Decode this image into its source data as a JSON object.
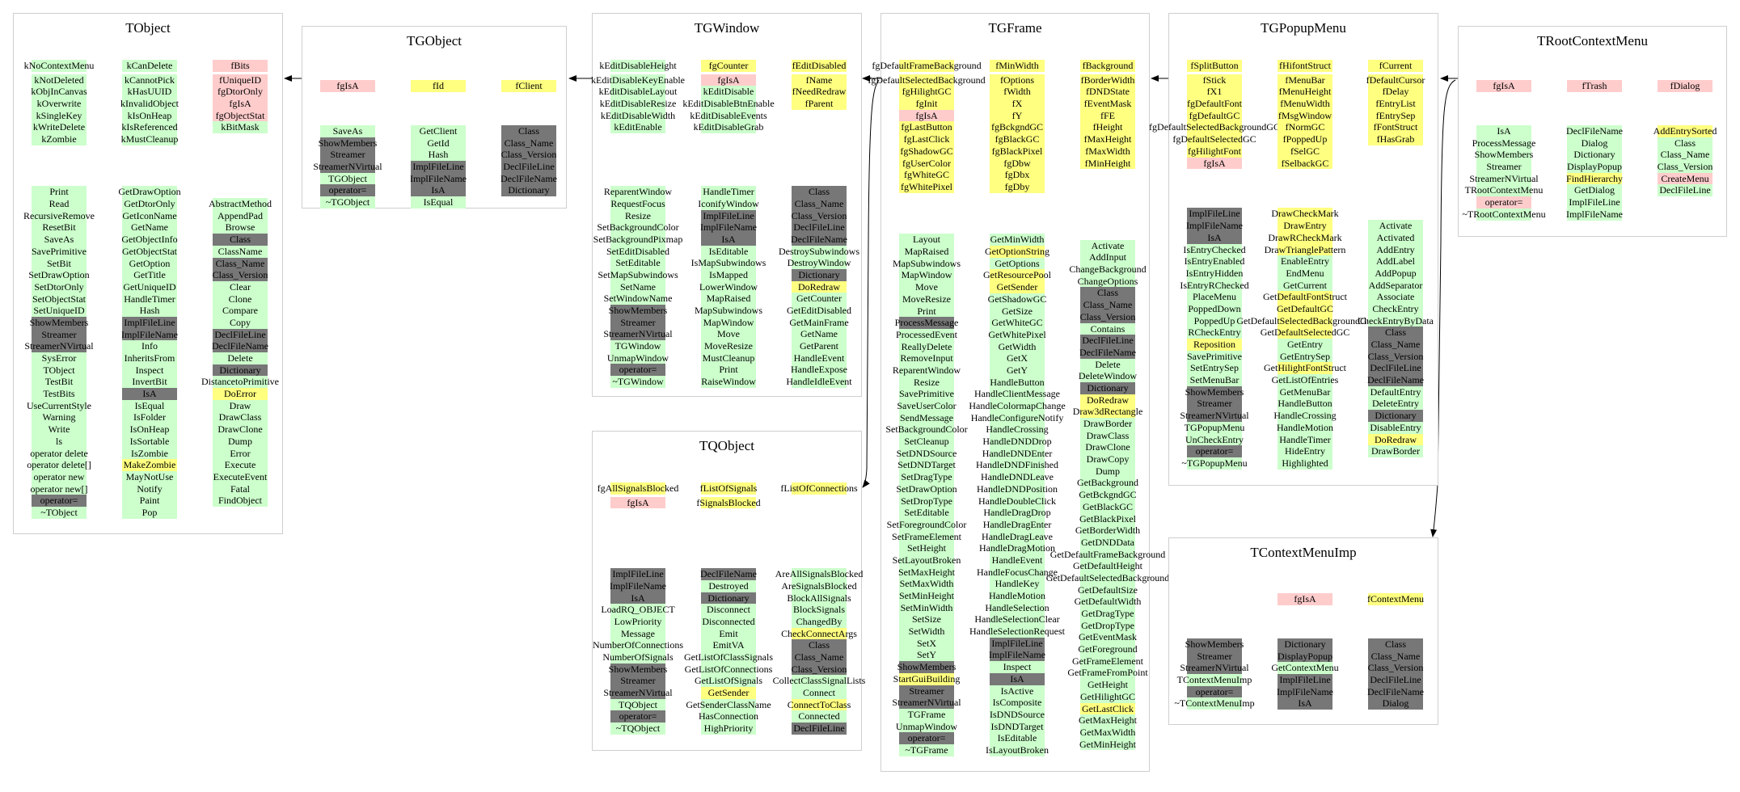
{
  "colors": {
    "g": "#ccffcc",
    "r": "#ffcccc",
    "y": "#ffff80",
    "d": "#777777"
  },
  "boxes": {
    "tobject": {
      "title": "TObject",
      "members": [
        [
          "kNoContextMenu|g",
          "kNotDeleted|g",
          "kObjInCanvas|g",
          "kOverwrite|g",
          "kSingleKey|g",
          "kWriteDelete|g",
          "kZombie|g"
        ],
        [
          "kCanDelete|g",
          "kCannotPick|g",
          "kHasUUID|g",
          "kInvalidObject|g",
          "kIsOnHeap|g",
          "kIsReferenced|g",
          "kMustCleanup|g"
        ],
        [
          "fBits|r",
          "fUniqueID|r",
          "fgDtorOnly|r",
          "fgIsA|r",
          "fgObjectStat|r",
          "kBitMask|g"
        ]
      ],
      "methods": [
        [
          "Print|g",
          "Read|g",
          "RecursiveRemove|g",
          "ResetBit|g",
          "SaveAs|g",
          "SavePrimitive|g",
          "SetBit|g",
          "SetDrawOption|g",
          "SetDtorOnly|g",
          "SetObjectStat|g",
          "SetUniqueID|g",
          "ShowMembers|d",
          "Streamer|d",
          "StreamerNVirtual|d",
          "SysError|g",
          "TObject|g",
          "TestBit|g",
          "TestBits|g",
          "UseCurrentStyle|g",
          "Warning|g",
          "Write|g",
          "ls|g",
          "operator delete|g",
          "operator delete[]|g",
          "operator new|g",
          "operator new[]|g",
          "operator=|d",
          "~TObject|g"
        ],
        [
          "GetDrawOption|g",
          "GetDtorOnly|g",
          "GetIconName|g",
          "GetName|g",
          "GetObjectInfo|g",
          "GetObjectStat|g",
          "GetOption|g",
          "GetTitle|g",
          "GetUniqueID|g",
          "HandleTimer|g",
          "Hash|g",
          "ImplFileLine|d",
          "ImplFileName|d",
          "Info|g",
          "InheritsFrom|g",
          "Inspect|g",
          "InvertBit|g",
          "IsA|d",
          "IsEqual|g",
          "IsFolder|g",
          "IsOnHeap|g",
          "IsSortable|g",
          "IsZombie|g",
          "MakeZombie|y",
          "MayNotUse|g",
          "Notify|g",
          "Paint|g",
          "Pop|g"
        ],
        [
          "AbstractMethod|g",
          "AppendPad|g",
          "Browse|g",
          "Class|d",
          "ClassName|g",
          "Class_Name|d",
          "Class_Version|d",
          "Clear|g",
          "Clone|g",
          "Compare|g",
          "Copy|g",
          "DeclFileLine|d",
          "DeclFileName|d",
          "Delete|g",
          "Dictionary|d",
          "DistancetoPrimitive|g",
          "DoError|y",
          "Draw|g",
          "DrawClass|g",
          "DrawClone|g",
          "Dump|g",
          "Error|g",
          "Execute|g",
          "ExecuteEvent|g",
          "Fatal|g",
          "FindObject|g"
        ]
      ]
    },
    "tgobject": {
      "title": "TGObject",
      "members": [
        [
          "fgIsA|r"
        ],
        [
          "fId|y"
        ],
        [
          "fClient|y"
        ]
      ],
      "methods": [
        [
          "SaveAs|g",
          "ShowMembers|d",
          "Streamer|d",
          "StreamerNVirtual|d",
          "TGObject|g",
          "operator=|d",
          "~TGObject|g"
        ],
        [
          "GetClient|g",
          "GetId|g",
          "Hash|g",
          "ImplFileLine|d",
          "ImplFileName|d",
          "IsA|d",
          "IsEqual|g"
        ],
        [
          "Class|d",
          "Class_Name|d",
          "Class_Version|d",
          "DeclFileLine|d",
          "DeclFileName|d",
          "Dictionary|d"
        ]
      ]
    },
    "tgwindow": {
      "title": "TGWindow",
      "members": [
        [
          "kEditDisableHeight|g",
          "kEditDisableKeyEnable|g",
          "kEditDisableLayout|g",
          "kEditDisableResize|g",
          "kEditDisableWidth|g",
          "kEditEnable|g"
        ],
        [
          "fgCounter|y",
          "fgIsA|r",
          "kEditDisable|g",
          "kEditDisableBtnEnable|g",
          "kEditDisableEvents|g",
          "kEditDisableGrab|g"
        ],
        [
          "fEditDisabled|y",
          "fName|y",
          "fNeedRedraw|y",
          "fParent|y"
        ]
      ],
      "methods": [
        [
          "ReparentWindow|g",
          "RequestFocus|g",
          "Resize|g",
          "SetBackgroundColor|g",
          "SetBackgroundPixmap|g",
          "SetEditDisabled|g",
          "SetEditable|g",
          "SetMapSubwindows|g",
          "SetName|g",
          "SetWindowName|g",
          "ShowMembers|d",
          "Streamer|d",
          "StreamerNVirtual|d",
          "TGWindow|g",
          "UnmapWindow|g",
          "operator=|d",
          "~TGWindow|g"
        ],
        [
          "HandleTimer|g",
          "IconifyWindow|g",
          "ImplFileLine|d",
          "ImplFileName|d",
          "IsA|d",
          "IsEditable|g",
          "IsMapSubwindows|g",
          "IsMapped|g",
          "LowerWindow|g",
          "MapRaised|g",
          "MapSubwindows|g",
          "MapWindow|g",
          "Move|g",
          "MoveResize|g",
          "MustCleanup|g",
          "Print|g",
          "RaiseWindow|g"
        ],
        [
          "Class|d",
          "Class_Name|d",
          "Class_Version|d",
          "DeclFileLine|d",
          "DeclFileName|d",
          "DestroySubwindows|g",
          "DestroyWindow|g",
          "Dictionary|d",
          "DoRedraw|y",
          "GetCounter|g",
          "GetEditDisabled|g",
          "GetMainFrame|g",
          "GetName|g",
          "GetParent|g",
          "HandleEvent|g",
          "HandleExpose|g",
          "HandleIdleEvent|g"
        ]
      ]
    },
    "tqobject": {
      "title": "TQObject",
      "members": [
        [
          "fgAllSignalsBlocked|y",
          "fgIsA|r"
        ],
        [
          "fListOfSignals|y",
          "fSignalsBlocked|y"
        ],
        [
          "fListOfConnections|y"
        ]
      ],
      "methods": [
        [
          "ImplFileLine|d",
          "ImplFileName|d",
          "IsA|d",
          "LoadRQ_OBJECT|g",
          "LowPriority|g",
          "Message|g",
          "NumberOfConnections|g",
          "NumberOfSignals|g",
          "ShowMembers|d",
          "Streamer|d",
          "StreamerNVirtual|d",
          "TQObject|g",
          "operator=|d",
          "~TQObject|g"
        ],
        [
          "DeclFileName|d",
          "Destroyed|g",
          "Dictionary|d",
          "Disconnect|g",
          "Disconnected|g",
          "Emit|g",
          "EmitVA|g",
          "GetListOfClassSignals|g",
          "GetListOfConnections|g",
          "GetListOfSignals|g",
          "GetSender|y",
          "GetSenderClassName|g",
          "HasConnection|g",
          "HighPriority|g"
        ],
        [
          "AreAllSignalsBlocked|g",
          "AreSignalsBlocked|g",
          "BlockAllSignals|g",
          "BlockSignals|g",
          "ChangedBy|g",
          "CheckConnectArgs|y",
          "Class|d",
          "Class_Name|d",
          "Class_Version|d",
          "CollectClassSignalLists|g",
          "Connect|g",
          "ConnectToClass|y",
          "Connected|g",
          "DeclFileLine|d"
        ]
      ]
    },
    "tgframe": {
      "title": "TGFrame",
      "members": [
        [
          "fgDefaultFrameBackground|y",
          "fgDefaultSelectedBackground|y",
          "fgHilightGC|y",
          "fgInit|y",
          "fgIsA|r",
          "fgLastButton|y",
          "fgLastClick|y",
          "fgShadowGC|y",
          "fgUserColor|y",
          "fgWhiteGC|y",
          "fgWhitePixel|y"
        ],
        [
          "fMinWidth|y",
          "fOptions|y",
          "fWidth|y",
          "fX|y",
          "fY|y",
          "fgBckgndGC|y",
          "fgBlackGC|y",
          "fgBlackPixel|y",
          "fgDbw|y",
          "fgDbx|y",
          "fgDby|y"
        ],
        [
          "fBackground|y",
          "fBorderWidth|y",
          "fDNDState|y",
          "fEventMask|y",
          "fFE|y",
          "fHeight|y",
          "fMaxHeight|y",
          "fMaxWidth|y",
          "fMinHeight|y"
        ]
      ],
      "methods": [
        [
          "Layout|g",
          "MapRaised|g",
          "MapSubwindows|g",
          "MapWindow|g",
          "Move|g",
          "MoveResize|g",
          "Print|g",
          "ProcessMessage|d",
          "ProcessedEvent|g",
          "ReallyDelete|g",
          "RemoveInput|g",
          "ReparentWindow|g",
          "Resize|g",
          "SavePrimitive|g",
          "SaveUserColor|g",
          "SendMessage|g",
          "SetBackgroundColor|g",
          "SetCleanup|g",
          "SetDNDSource|g",
          "SetDNDTarget|g",
          "SetDragType|g",
          "SetDrawOption|g",
          "SetDropType|g",
          "SetEditable|g",
          "SetForegroundColor|g",
          "SetFrameElement|g",
          "SetHeight|g",
          "SetLayoutBroken|g",
          "SetMaxHeight|g",
          "SetMaxWidth|g",
          "SetMinHeight|g",
          "SetMinWidth|g",
          "SetSize|g",
          "SetWidth|g",
          "SetX|g",
          "SetY|g",
          "ShowMembers|d",
          "StartGuiBuilding|y",
          "Streamer|d",
          "StreamerNVirtual|d",
          "TGFrame|g",
          "UnmapWindow|g",
          "operator=|d",
          "~TGFrame|g"
        ],
        [
          "GetMinWidth|g",
          "GetOptionString|y",
          "GetOptions|g",
          "GetResourcePool|y",
          "GetSender|y",
          "GetShadowGC|g",
          "GetSize|g",
          "GetWhiteGC|g",
          "GetWhitePixel|g",
          "GetWidth|g",
          "GetX|g",
          "GetY|g",
          "HandleButton|g",
          "HandleClientMessage|g",
          "HandleColormapChange|g",
          "HandleConfigureNotify|g",
          "HandleCrossing|g",
          "HandleDNDDrop|g",
          "HandleDNDEnter|g",
          "HandleDNDFinished|g",
          "HandleDNDLeave|g",
          "HandleDNDPosition|g",
          "HandleDoubleClick|g",
          "HandleDragDrop|g",
          "HandleDragEnter|g",
          "HandleDragLeave|g",
          "HandleDragMotion|g",
          "HandleEvent|g",
          "HandleFocusChange|g",
          "HandleKey|g",
          "HandleMotion|g",
          "HandleSelection|g",
          "HandleSelectionClear|g",
          "HandleSelectionRequest|g",
          "ImplFileLine|d",
          "ImplFileName|d",
          "Inspect|g",
          "IsA|d",
          "IsActive|g",
          "IsComposite|g",
          "IsDNDSource|g",
          "IsDNDTarget|g",
          "IsEditable|g",
          "IsLayoutBroken|g"
        ],
        [
          "Activate|g",
          "AddInput|g",
          "ChangeBackground|g",
          "ChangeOptions|g",
          "Class|d",
          "Class_Name|d",
          "Class_Version|d",
          "Contains|g",
          "DeclFileLine|d",
          "DeclFileName|d",
          "Delete|g",
          "DeleteWindow|g",
          "Dictionary|d",
          "DoRedraw|y",
          "Draw3dRectangle|y",
          "DrawBorder|g",
          "DrawClass|g",
          "DrawClone|g",
          "DrawCopy|g",
          "Dump|g",
          "GetBackground|g",
          "GetBckgndGC|g",
          "GetBlackGC|g",
          "GetBlackPixel|g",
          "GetBorderWidth|g",
          "GetDNDData|g",
          "GetDefaultFrameBackground|g",
          "GetDefaultHeight|g",
          "GetDefaultSelectedBackground|g",
          "GetDefaultSize|g",
          "GetDefaultWidth|g",
          "GetDragType|g",
          "GetDropType|g",
          "GetEventMask|g",
          "GetForeground|g",
          "GetFrameElement|g",
          "GetFrameFromPoint|g",
          "GetHeight|g",
          "GetHilightGC|g",
          "GetLastClick|y",
          "GetMaxHeight|g",
          "GetMaxWidth|g",
          "GetMinHeight|g"
        ]
      ]
    },
    "tgpopupmenu": {
      "title": "TGPopupMenu",
      "members": [
        [
          "fSplitButton|y",
          "fStick|y",
          "fX1|y",
          "fgDefaultFont|y",
          "fgDefaultGC|y",
          "fgDefaultSelectedBackgroundGC|y",
          "fgDefaultSelectedGC|y",
          "fgHilightFont|y",
          "fgIsA|r"
        ],
        [
          "fHifontStruct|y",
          "fMenuBar|y",
          "fMenuHeight|y",
          "fMenuWidth|y",
          "fMsgWindow|y",
          "fNormGC|y",
          "fPoppedUp|y",
          "fSelGC|y",
          "fSelbackGC|y"
        ],
        [
          "fCurrent|y",
          "fDefaultCursor|y",
          "fDelay|y",
          "fEntryList|y",
          "fEntrySep|y",
          "fFontStruct|y",
          "fHasGrab|y"
        ]
      ],
      "methods": [
        [
          "ImplFileLine|d",
          "ImplFileName|d",
          "IsA|d",
          "IsEntryChecked|g",
          "IsEntryEnabled|g",
          "IsEntryHidden|g",
          "IsEntryRChecked|g",
          "PlaceMenu|g",
          "PoppedDown|g",
          "PoppedUp|g",
          "RCheckEntry|g",
          "Reposition|y",
          "SavePrimitive|g",
          "SetEntrySep|g",
          "SetMenuBar|g",
          "ShowMembers|d",
          "Streamer|d",
          "StreamerNVirtual|d",
          "TGPopupMenu|g",
          "UnCheckEntry|g",
          "operator=|d",
          "~TGPopupMenu|g"
        ],
        [
          "DrawCheckMark|y",
          "DrawEntry|y",
          "DrawRCheckMark|y",
          "DrawTrianglePattern|y",
          "EnableEntry|g",
          "EndMenu|g",
          "GetCurrent|g",
          "GetDefaultFontStruct|y",
          "GetDefaultGC|y",
          "GetDefaultSelectedBackgroundGC|y",
          "GetDefaultSelectedGC|y",
          "GetEntry|g",
          "GetEntrySep|g",
          "GetHilightFontStruct|y",
          "GetListOfEntries|g",
          "GetMenuBar|g",
          "HandleButton|g",
          "HandleCrossing|g",
          "HandleMotion|g",
          "HandleTimer|g",
          "HideEntry|g",
          "Highlighted|g"
        ],
        [
          "Activate|g",
          "Activated|g",
          "AddEntry|g",
          "AddLabel|g",
          "AddPopup|g",
          "AddSeparator|g",
          "Associate|g",
          "CheckEntry|g",
          "CheckEntryByData|g",
          "Class|d",
          "Class_Name|d",
          "Class_Version|d",
          "DeclFileLine|d",
          "DeclFileName|d",
          "DefaultEntry|g",
          "DeleteEntry|g",
          "Dictionary|d",
          "DisableEntry|g",
          "DoRedraw|y",
          "DrawBorder|g"
        ]
      ]
    },
    "trootcontextmenu": {
      "title": "TRootContextMenu",
      "members": [
        [
          "fgIsA|r"
        ],
        [
          "fTrash|r"
        ],
        [
          "fDialog|r"
        ]
      ],
      "methods": [
        [
          "IsA|g",
          "ProcessMessage|g",
          "ShowMembers|g",
          "Streamer|g",
          "StreamerNVirtual|g",
          "TRootContextMenu|g",
          "operator=|r",
          "~TRootContextMenu|g"
        ],
        [
          "DeclFileName|g",
          "Dialog|g",
          "Dictionary|g",
          "DisplayPopup|g",
          "FindHierarchy|y",
          "GetDialog|g",
          "ImplFileLine|g",
          "ImplFileName|g"
        ],
        [
          "AddEntrySorted|y",
          "Class|g",
          "Class_Name|g",
          "Class_Version|g",
          "CreateMenu|r",
          "DeclFileLine|g"
        ]
      ]
    },
    "tcontextmenuimp": {
      "title": "TContextMenuImp",
      "members": [
        [],
        [
          "fgIsA|r"
        ],
        [
          "fContextMenu|y"
        ]
      ],
      "methods": [
        [
          "ShowMembers|d",
          "Streamer|d",
          "StreamerNVirtual|d",
          "TContextMenuImp|g",
          "operator=|d",
          "~TContextMenuImp|g"
        ],
        [
          "Dictionary|d",
          "DisplayPopup|d",
          "GetContextMenu|g",
          "ImplFileLine|d",
          "ImplFileName|d",
          "IsA|d"
        ],
        [
          "Class|d",
          "Class_Name|d",
          "Class_Version|d",
          "DeclFileLine|d",
          "DeclFileName|d",
          "Dialog|d"
        ]
      ]
    }
  }
}
